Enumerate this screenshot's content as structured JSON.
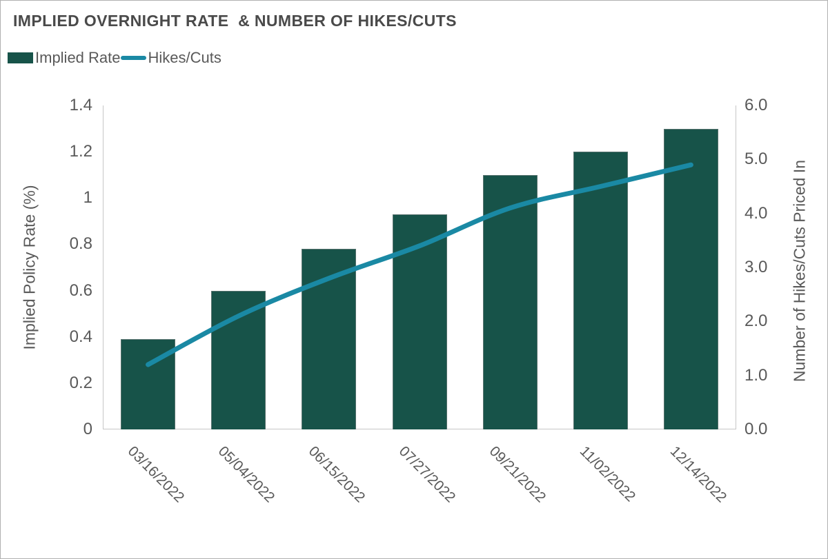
{
  "title": "IMPLIED OVERNIGHT RATE  & NUMBER OF HIKES/CUTS",
  "legend": [
    {
      "label": "Implied Rate",
      "type": "bar",
      "color": "#175349"
    },
    {
      "label": "Hikes/Cuts",
      "type": "line",
      "color": "#1a89a4"
    }
  ],
  "colors": {
    "bar": "#175349",
    "line": "#1a89a4",
    "title_text": "#4a4a4a",
    "axis_text": "#595959",
    "axis_line": "#c6c6c6",
    "border": "#b0b0b0"
  },
  "chart_data": {
    "type": "bar",
    "subtype": "bar+line dual-axis",
    "title": "IMPLIED OVERNIGHT RATE  & NUMBER OF HIKES/CUTS",
    "categories": [
      "03/16/2022",
      "05/04/2022",
      "06/15/2022",
      "07/27/2022",
      "09/21/2022",
      "11/02/2022",
      "12/14/2022"
    ],
    "series": [
      {
        "name": "Implied Rate",
        "type": "bar",
        "axis": "left",
        "color": "#175349",
        "values": [
          0.39,
          0.6,
          0.78,
          0.93,
          1.1,
          1.2,
          1.3
        ]
      },
      {
        "name": "Hikes/Cuts",
        "type": "line",
        "axis": "right",
        "color": "#1a89a4",
        "values": [
          1.2,
          2.1,
          2.8,
          3.4,
          4.1,
          4.5,
          4.9
        ]
      }
    ],
    "left_axis": {
      "label": "Implied Policy Rate (%)",
      "min": 0,
      "max": 1.4,
      "ticks": [
        "1.4",
        "1.2",
        "1",
        "0.8",
        "0.6",
        "0.4",
        "0.2",
        "0"
      ]
    },
    "right_axis": {
      "label": "Number of Hikes/Cuts Priced In",
      "min": 0,
      "max": 6,
      "ticks": [
        "6.0",
        "5.0",
        "4.0",
        "3.0",
        "2.0",
        "1.0",
        "0.0"
      ]
    },
    "grid": false,
    "legend_position": "top-left"
  }
}
